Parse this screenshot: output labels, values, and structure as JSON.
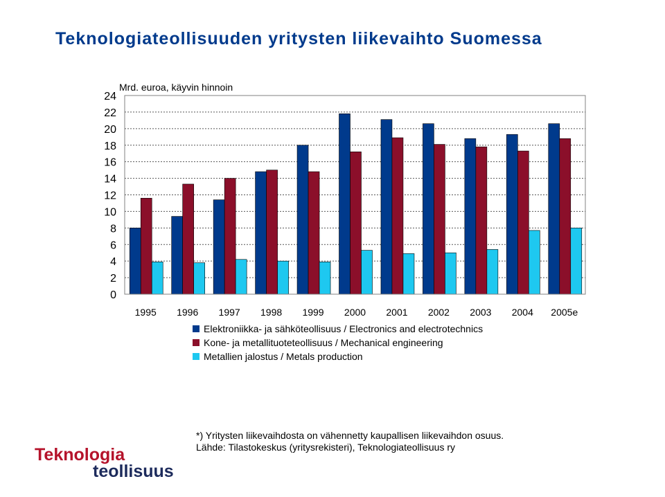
{
  "title": "Teknologiateollisuuden yritysten liikevaihto Suomessa",
  "chart_data": {
    "type": "bar",
    "ylabel": "Mrd. euroa, käyvin hinnoin",
    "ylim": [
      0,
      24
    ],
    "yticks": [
      0,
      2,
      4,
      6,
      8,
      10,
      12,
      14,
      16,
      18,
      20,
      22,
      24
    ],
    "grid": true,
    "legend_position": "bottom",
    "categories": [
      "1995",
      "1996",
      "1997",
      "1998",
      "1999",
      "2000",
      "2001",
      "2002",
      "2003",
      "2004",
      "2005e"
    ],
    "series": [
      {
        "name": "Elektroniikka- ja sähköteollisuus / Electronics and electrotechnics",
        "color": "#003a8c",
        "values": [
          8.0,
          9.4,
          11.4,
          14.8,
          18.0,
          21.8,
          21.1,
          20.6,
          18.8,
          19.3,
          20.6
        ]
      },
      {
        "name": "Kone- ja metallituoteteollisuus / Mechanical engineering",
        "color": "#8b0f2a",
        "values": [
          11.6,
          13.3,
          14.0,
          15.0,
          14.8,
          17.2,
          18.9,
          18.1,
          17.8,
          17.3,
          18.8
        ]
      },
      {
        "name": "Metallien jalostus / Metals production",
        "color": "#1ec8f0",
        "values": [
          3.9,
          3.8,
          4.2,
          4.0,
          3.9,
          5.3,
          4.9,
          5.0,
          5.4,
          7.7,
          8.0
        ]
      }
    ]
  },
  "footnote": {
    "line1": "*) Yritysten liikevaihdosta on vähennetty kaupallisen liikevaihdon osuus.",
    "line2": "Lähde: Tilastokeskus (yritysrekisteri), Teknologiateollisuus ry"
  },
  "logo": {
    "line1": "Teknologia",
    "line2": "teollisuus",
    "colors": {
      "red": "#b5132b",
      "navy": "#1d2b5c"
    }
  }
}
